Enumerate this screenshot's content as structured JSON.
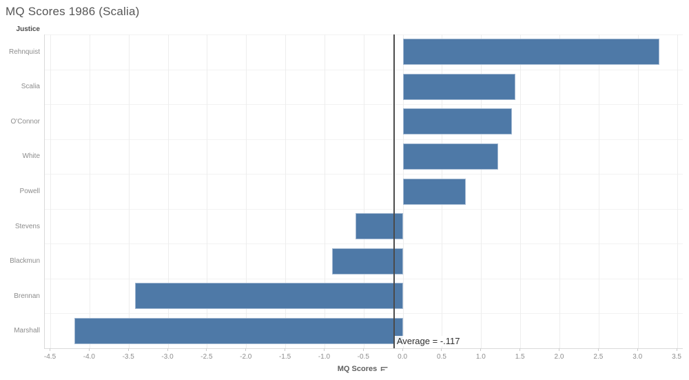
{
  "chart_data": {
    "type": "bar",
    "orientation": "horizontal",
    "title": "MQ Scores 1986 (Scalia)",
    "row_header": "Justice",
    "categories": [
      "Rehnquist",
      "Scalia",
      "O'Connor",
      "White",
      "Powell",
      "Stevens",
      "Blackmun",
      "Brennan",
      "Marshall"
    ],
    "values": [
      3.27,
      1.43,
      1.39,
      1.21,
      0.8,
      -0.61,
      -0.91,
      -3.42,
      -4.2
    ],
    "xlabel": "MQ Scores",
    "x_ticks": [
      -4.5,
      -4.0,
      -3.5,
      -3.0,
      -2.5,
      -2.0,
      -1.5,
      -1.0,
      -0.5,
      0.0,
      0.5,
      1.0,
      1.5,
      2.0,
      2.5,
      3.0,
      3.5
    ],
    "x_tick_labels": [
      "-4.5",
      "-4.0",
      "-3.5",
      "-3.0",
      "-2.5",
      "-2.0",
      "-1.5",
      "-1.0",
      "-0.5",
      "0.0",
      "0.5",
      "1.0",
      "1.5",
      "2.0",
      "2.5",
      "3.0",
      "3.5"
    ],
    "xlim": [
      -4.575,
      3.57
    ],
    "grid": true,
    "legend": false,
    "reference_line": {
      "value": -0.117,
      "label": "Average = -.117"
    },
    "colors": {
      "bar": "#4e79a7",
      "bar_border": "#a5bad3",
      "reference_line": "#4a4a4a",
      "gridline": "#ededed"
    },
    "sort": "descending"
  }
}
